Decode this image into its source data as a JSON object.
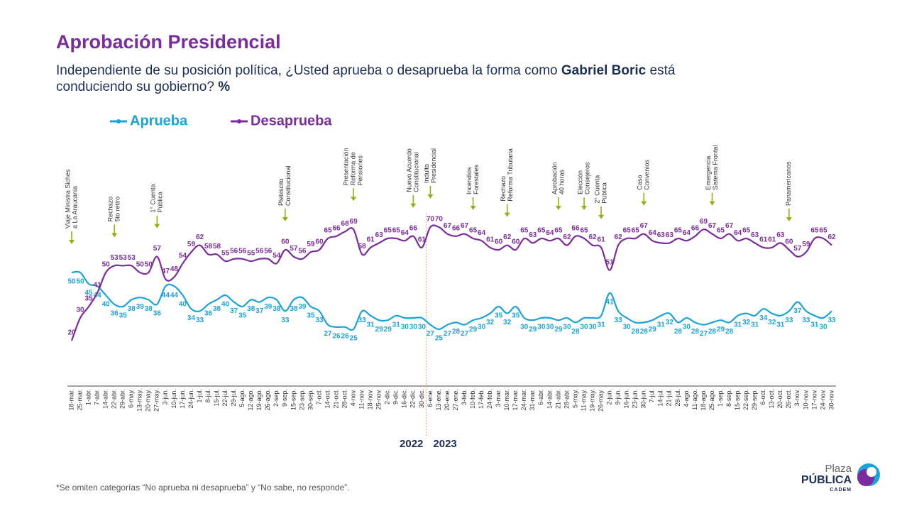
{
  "chart_data": {
    "type": "line",
    "title": "Aprobación Presidencial",
    "subtitle": [
      "Independiente de su posición política, ¿Usted aprueba o desaprueba la forma como ",
      "Gabriel Boric",
      " está conduciendo su gobierno? ",
      "%"
    ],
    "categories": [
      "18-mar.",
      "25-mar.",
      "1-abr.",
      "7-abr.",
      "14-abr.",
      "22-abr.",
      "29-abr.",
      "6-may.",
      "13-may.",
      "20-may.",
      "27-may.",
      "3-jun.",
      "10-jun.",
      "17-jun.",
      "24-jun.",
      "1-jul.",
      "8-jul.",
      "15-jul.",
      "22-jul.",
      "29-jul.",
      "5-ago.",
      "12-ago.",
      "19-ago.",
      "26-ago.",
      "2-sep.",
      "9-sep.",
      "15-sep.",
      "23-sep.",
      "30-sep.",
      "7-oct.",
      "14-oct.",
      "21-oct.",
      "28-oct.",
      "4-nov.",
      "11-nov.",
      "18-nov.",
      "25-nov.",
      "2-dic.",
      "9-dic.",
      "16-dic.",
      "22-dic.",
      "30-dic.",
      "6-ene.",
      "13-ene.",
      "20-ene.",
      "27-ene.",
      "3-feb.",
      "10-feb.",
      "17-feb.",
      "24-feb.",
      "3-mar.",
      "10-mar.",
      "17-mar.",
      "24-mar.",
      "31-mar.",
      "6-abr.",
      "14-abr.",
      "21-abr.",
      "28-abr.",
      "5-may.",
      "11-may.",
      "19-may.",
      "26-may.",
      "2-jun.",
      "9-jun.",
      "16-jun.",
      "23-jun.",
      "30-jun.",
      "7-jul.",
      "14-jul.",
      "21-jul.",
      "28-jul.",
      "4-ago.",
      "11-ago.",
      "18-ago.",
      "25-ago.",
      "1-sep.",
      "8-sep.",
      "15-sep.",
      "22-sep.",
      "29-sep.",
      "6-oct.",
      "13-oct.",
      "20-oct.",
      "26-oct.",
      "3-nov.",
      "10-nov.",
      "17-nov.",
      "24-nov.",
      "30-nov."
    ],
    "series": [
      {
        "name": "Aprueba",
        "color": "#1ba3da",
        "values": [
          50,
          50,
          45,
          44,
          40,
          36,
          35,
          38,
          39,
          38,
          36,
          44,
          44,
          40,
          34,
          33,
          36,
          38,
          40,
          37,
          35,
          38,
          37,
          39,
          38,
          33,
          38,
          39,
          35,
          33,
          27,
          26,
          26,
          25,
          33,
          31,
          29,
          29,
          31,
          30,
          30,
          30,
          27,
          25,
          27,
          28,
          27,
          29,
          30,
          32,
          35,
          32,
          35,
          30,
          29,
          30,
          30,
          29,
          30,
          28,
          30,
          30,
          31,
          41,
          33,
          30,
          28,
          28,
          29,
          31,
          32,
          28,
          30,
          28,
          27,
          28,
          29,
          28,
          31,
          32,
          31,
          34,
          32,
          31,
          33,
          37,
          33,
          31,
          30,
          33
        ]
      },
      {
        "name": "Desaprueba",
        "color": "#7b2c9d",
        "values": [
          20,
          30,
          35,
          41,
          50,
          53,
          53,
          53,
          50,
          50,
          57,
          47,
          48,
          54,
          59,
          62,
          58,
          58,
          55,
          56,
          56,
          55,
          56,
          56,
          54,
          60,
          57,
          56,
          59,
          60,
          65,
          66,
          68,
          69,
          58,
          61,
          63,
          65,
          65,
          64,
          66,
          61,
          70,
          70,
          67,
          66,
          67,
          65,
          64,
          61,
          60,
          62,
          60,
          65,
          63,
          65,
          64,
          65,
          62,
          66,
          65,
          62,
          61,
          51,
          62,
          65,
          65,
          67,
          64,
          63,
          63,
          65,
          64,
          66,
          69,
          67,
          65,
          67,
          64,
          65,
          63,
          61,
          61,
          63,
          60,
          57,
          59,
          65,
          65,
          62
        ]
      }
    ],
    "ylim": [
      0,
      100
    ],
    "years": [
      "2022",
      "2023"
    ],
    "annotations": [
      {
        "lines": [
          "Viaje Ministra Siches",
          "a La Araucania"
        ],
        "x": "18-mar."
      },
      {
        "lines": [
          "Rechazo",
          "5to retiro"
        ],
        "x": "22-abr."
      },
      {
        "lines": [
          "1° Cuenta",
          "Pública"
        ],
        "x": "27-may."
      },
      {
        "lines": [
          "Plebiscito",
          "Constitucional"
        ],
        "x": "9-sep."
      },
      {
        "lines": [
          "Presentación",
          "Reforma de",
          "Pensiones"
        ],
        "x": "4-nov."
      },
      {
        "lines": [
          "Nuevo Acuerdo",
          "Constitucional"
        ],
        "x": "22-dic."
      },
      {
        "lines": [
          "Indulto",
          "Presidencial"
        ],
        "x": "6-ene."
      },
      {
        "lines": [
          "Incendios",
          "Forestales"
        ],
        "x": "10-feb."
      },
      {
        "lines": [
          "Rechazo",
          "Reforma Tributaria"
        ],
        "x": "10-mar."
      },
      {
        "lines": [
          "Aprobación",
          "40 horas"
        ],
        "x": "21-abr."
      },
      {
        "lines": [
          "Elección",
          "Consejeros"
        ],
        "x": "11-may."
      },
      {
        "lines": [
          "2° Cuenta",
          "Pública"
        ],
        "x": "26-may."
      },
      {
        "lines": [
          "Caso",
          "Convenios"
        ],
        "x": "30-jun."
      },
      {
        "lines": [
          "Emergencia",
          "Sistema Frontal"
        ],
        "x": "25-ago."
      },
      {
        "lines": [
          "Panamericanos"
        ],
        "x": "26-oct."
      }
    ],
    "footnote": "*Se omiten categorías “No aprueba ni desaprueba” y “No sabe, no responde”.",
    "logo": [
      "Plaza",
      "PÚBLICA",
      "CADEM"
    ]
  }
}
